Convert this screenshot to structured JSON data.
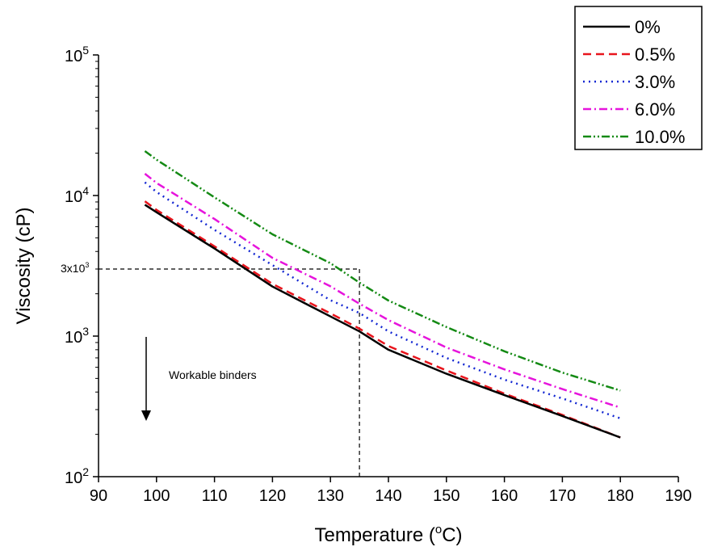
{
  "chart_data": {
    "type": "line",
    "x_label_text": "Temperature (",
    "x_label_sup": "o",
    "x_label_end": "C)",
    "y_label": "Viscosity (cP)",
    "xlim": [
      90,
      190
    ],
    "ylim": [
      100,
      100000
    ],
    "y_scale": "log",
    "grid": false,
    "legend_position": "top-right",
    "x_ticks": [
      90,
      100,
      110,
      120,
      130,
      140,
      150,
      160,
      170,
      180,
      190
    ],
    "y_ticks": [
      {
        "value": 100,
        "base": "10",
        "exp": "2"
      },
      {
        "value": 1000,
        "base": "10",
        "exp": "3"
      },
      {
        "value": 10000,
        "base": "10",
        "exp": "4"
      },
      {
        "value": 100000,
        "base": "10",
        "exp": "5"
      }
    ],
    "x": [
      98,
      100,
      110,
      120,
      130,
      135,
      140,
      150,
      160,
      170,
      180
    ],
    "series": [
      {
        "name": "0%",
        "color": "#000000",
        "dash": "",
        "values": [
          8600,
          7600,
          4200,
          2250,
          1380,
          1080,
          800,
          540,
          380,
          270,
          190
        ]
      },
      {
        "name": "0.5%",
        "color": "#e8141c",
        "dash": "10,6",
        "values": [
          9100,
          7900,
          4350,
          2350,
          1450,
          1130,
          850,
          570,
          390,
          275,
          190
        ]
      },
      {
        "name": "3.0%",
        "color": "#1428d2",
        "dash": "2,5",
        "values": [
          12400,
          10600,
          5700,
          3200,
          1800,
          1460,
          1080,
          700,
          490,
          360,
          260
        ]
      },
      {
        "name": "6.0%",
        "color": "#e614dc",
        "dash": "10,4,2,4",
        "values": [
          14300,
          12300,
          6800,
          3600,
          2260,
          1700,
          1300,
          830,
          580,
          420,
          310
        ]
      },
      {
        "name": "10.0%",
        "color": "#148a14",
        "dash": "10,3,2,3,2,3",
        "values": [
          20700,
          18000,
          9700,
          5300,
          3300,
          2400,
          1790,
          1160,
          780,
          550,
          410
        ]
      }
    ],
    "annotations": {
      "ref_y_label_base": "3x10",
      "ref_y_label_exp": "3",
      "ref_y_value": 3000,
      "ref_x_value": 135,
      "arrow_text": "Workable binders"
    }
  }
}
